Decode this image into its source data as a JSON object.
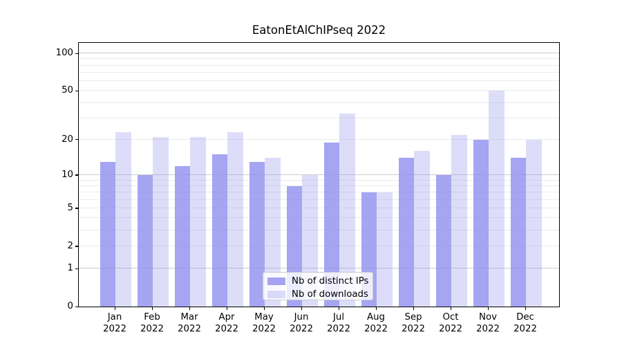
{
  "chart_data": {
    "type": "bar",
    "title": "EatonEtAlChIPseq 2022",
    "categories": [
      "Jan 2022",
      "Feb 2022",
      "Mar 2022",
      "Apr 2022",
      "May 2022",
      "Jun 2022",
      "Jul 2022",
      "Aug 2022",
      "Sep 2022",
      "Oct 2022",
      "Nov 2022",
      "Dec 2022"
    ],
    "series": [
      {
        "name": "Nb of distinct IPs",
        "color": "#8e8eef",
        "opacity": 0.8,
        "values": [
          13,
          10,
          12,
          15,
          13,
          8,
          19,
          7,
          14,
          10,
          20,
          14
        ]
      },
      {
        "name": "Nb of downloads",
        "color": "#8e8eef",
        "opacity": 0.3,
        "values": [
          23,
          21,
          21,
          23,
          14,
          10,
          33,
          7,
          16,
          22,
          50,
          20
        ]
      }
    ],
    "yscale": "log1p",
    "ylim": [
      0,
      125
    ],
    "xlabel": "",
    "ylabel": "",
    "y_tick_labels": [
      0,
      1,
      2,
      5,
      10,
      20,
      50,
      100
    ],
    "y_major_gridlines": [
      1,
      10,
      100
    ],
    "y_minor_gridlines": [
      2,
      3,
      4,
      5,
      6,
      7,
      8,
      9,
      20,
      30,
      40,
      50,
      60,
      70,
      80,
      90
    ],
    "grid": true,
    "legend_position": "lower center"
  },
  "colors": {
    "background": "#ffffff",
    "spine": "#000000",
    "major_grid": "#cccccc",
    "minor_grid": "#ebebeb",
    "legend_border": "#cccccc",
    "bar_base": "#8e8eef"
  }
}
